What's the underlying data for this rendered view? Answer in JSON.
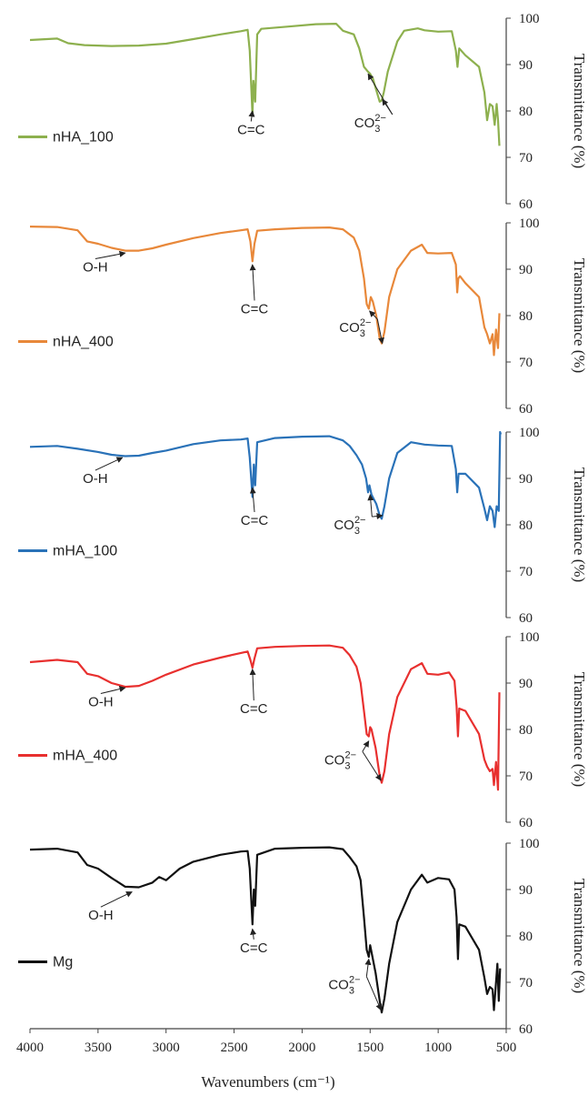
{
  "chart_data": [
    {
      "type": "line",
      "name": "nHA_100",
      "color": "#8db04e",
      "ylabel": "Transmittance (%)",
      "ylim": [
        60,
        100
      ],
      "yticks": [
        "100",
        "90",
        "80",
        "70",
        "60"
      ],
      "legend": "nHA_100",
      "points": [
        [
          4000,
          95.3
        ],
        [
          3800,
          95.6
        ],
        [
          3720,
          94.6
        ],
        [
          3600,
          94.2
        ],
        [
          3400,
          94.0
        ],
        [
          3200,
          94.1
        ],
        [
          3000,
          94.5
        ],
        [
          2800,
          95.5
        ],
        [
          2600,
          96.5
        ],
        [
          2450,
          97.2
        ],
        [
          2400,
          97.5
        ],
        [
          2385,
          93.0
        ],
        [
          2365,
          79.0
        ],
        [
          2358,
          86.5
        ],
        [
          2345,
          82.0
        ],
        [
          2330,
          96.5
        ],
        [
          2300,
          97.7
        ],
        [
          2100,
          98.2
        ],
        [
          1900,
          98.7
        ],
        [
          1750,
          98.8
        ],
        [
          1700,
          97.3
        ],
        [
          1620,
          96.5
        ],
        [
          1580,
          93.5
        ],
        [
          1545,
          89.5
        ],
        [
          1520,
          88.6
        ],
        [
          1500,
          88.0
        ],
        [
          1480,
          87.0
        ],
        [
          1455,
          84.5
        ],
        [
          1430,
          82.0
        ],
        [
          1415,
          82.3
        ],
        [
          1400,
          84.0
        ],
        [
          1370,
          88.5
        ],
        [
          1300,
          95.0
        ],
        [
          1250,
          97.3
        ],
        [
          1150,
          97.8
        ],
        [
          1100,
          97.4
        ],
        [
          1000,
          97.1
        ],
        [
          900,
          97.2
        ],
        [
          870,
          93.0
        ],
        [
          858,
          89.5
        ],
        [
          845,
          93.5
        ],
        [
          800,
          92.0
        ],
        [
          700,
          89.5
        ],
        [
          660,
          84.0
        ],
        [
          640,
          78.0
        ],
        [
          620,
          81.5
        ],
        [
          600,
          81.0
        ],
        [
          585,
          77.0
        ],
        [
          570,
          81.5
        ],
        [
          560,
          78.0
        ],
        [
          550,
          72.5
        ]
      ],
      "annotations": [
        {
          "label": "C=C",
          "text_x": 2375,
          "text_y": 75.0,
          "tip_x": 2365,
          "tip_y": 80.0
        },
        {
          "label": "CO₃²⁻",
          "text_x": 1470,
          "text_y": 76.5,
          "tip_x": 1515,
          "tip_y": 88.0
        },
        {
          "label": "",
          "text_x": 1470,
          "text_y": 76.5,
          "tip_x": 1410,
          "tip_y": 82.5
        }
      ]
    },
    {
      "type": "line",
      "name": "nHA_400",
      "color": "#e8883a",
      "ylabel": "Transmittance (%)",
      "ylim": [
        60,
        100
      ],
      "yticks": [
        "100",
        "90",
        "80",
        "70",
        "60"
      ],
      "legend": "nHA_400",
      "points": [
        [
          4000,
          99.2
        ],
        [
          3800,
          99.1
        ],
        [
          3650,
          98.4
        ],
        [
          3580,
          96.0
        ],
        [
          3500,
          95.5
        ],
        [
          3400,
          94.6
        ],
        [
          3300,
          94.0
        ],
        [
          3200,
          94.0
        ],
        [
          3100,
          94.5
        ],
        [
          3000,
          95.3
        ],
        [
          2800,
          96.7
        ],
        [
          2600,
          97.8
        ],
        [
          2450,
          98.4
        ],
        [
          2400,
          98.6
        ],
        [
          2380,
          96.0
        ],
        [
          2365,
          91.7
        ],
        [
          2350,
          95.5
        ],
        [
          2330,
          98.3
        ],
        [
          2200,
          98.6
        ],
        [
          2000,
          98.9
        ],
        [
          1800,
          99.0
        ],
        [
          1700,
          98.6
        ],
        [
          1620,
          96.8
        ],
        [
          1580,
          94.0
        ],
        [
          1545,
          88.0
        ],
        [
          1525,
          82.5
        ],
        [
          1510,
          81.5
        ],
        [
          1495,
          84.0
        ],
        [
          1480,
          83.0
        ],
        [
          1455,
          80.0
        ],
        [
          1430,
          75.0
        ],
        [
          1415,
          74.0
        ],
        [
          1395,
          76.5
        ],
        [
          1360,
          84.0
        ],
        [
          1300,
          90.0
        ],
        [
          1200,
          94.0
        ],
        [
          1120,
          95.3
        ],
        [
          1080,
          93.5
        ],
        [
          1000,
          93.4
        ],
        [
          900,
          93.5
        ],
        [
          870,
          91.0
        ],
        [
          860,
          85.0
        ],
        [
          852,
          88.0
        ],
        [
          840,
          88.5
        ],
        [
          800,
          87.0
        ],
        [
          700,
          84.0
        ],
        [
          660,
          77.5
        ],
        [
          640,
          76.0
        ],
        [
          620,
          74.0
        ],
        [
          600,
          76.0
        ],
        [
          590,
          71.5
        ],
        [
          575,
          77.0
        ],
        [
          560,
          73.0
        ],
        [
          550,
          80.5
        ]
      ],
      "annotations": [
        {
          "label": "O-H",
          "text_x": 3520,
          "text_y": 89.5,
          "tip_x": 3300,
          "tip_y": 93.5
        },
        {
          "label": "C=C",
          "text_x": 2350,
          "text_y": 80.5,
          "tip_x": 2365,
          "tip_y": 91.0
        },
        {
          "label": "CO₃²⁻",
          "text_x": 1580,
          "text_y": 76.5,
          "tip_x": 1505,
          "tip_y": 81.0
        },
        {
          "label": "",
          "text_x": 1580,
          "text_y": 76.5,
          "tip_x": 1410,
          "tip_y": 74.0
        }
      ]
    },
    {
      "type": "line",
      "name": "mHA_100",
      "color": "#2a72b8",
      "ylabel": "Transmittance (%)",
      "ylim": [
        60,
        100
      ],
      "yticks": [
        "100",
        "90",
        "80",
        "70",
        "60"
      ],
      "legend": "mHA_100",
      "points": [
        [
          4000,
          96.8
        ],
        [
          3800,
          97.0
        ],
        [
          3650,
          96.4
        ],
        [
          3500,
          95.7
        ],
        [
          3400,
          95.1
        ],
        [
          3300,
          94.8
        ],
        [
          3200,
          94.9
        ],
        [
          3100,
          95.5
        ],
        [
          3000,
          96.0
        ],
        [
          2800,
          97.4
        ],
        [
          2600,
          98.2
        ],
        [
          2450,
          98.4
        ],
        [
          2400,
          98.6
        ],
        [
          2385,
          94.5
        ],
        [
          2365,
          86.0
        ],
        [
          2355,
          93.0
        ],
        [
          2345,
          88.5
        ],
        [
          2330,
          97.8
        ],
        [
          2200,
          98.7
        ],
        [
          2000,
          99.0
        ],
        [
          1800,
          99.1
        ],
        [
          1700,
          98.2
        ],
        [
          1650,
          97.0
        ],
        [
          1600,
          95.0
        ],
        [
          1560,
          93.0
        ],
        [
          1530,
          90.0
        ],
        [
          1515,
          87.0
        ],
        [
          1505,
          88.5
        ],
        [
          1490,
          86.5
        ],
        [
          1455,
          84.5
        ],
        [
          1430,
          82.0
        ],
        [
          1415,
          81.3
        ],
        [
          1395,
          84.0
        ],
        [
          1360,
          90.0
        ],
        [
          1300,
          95.5
        ],
        [
          1200,
          97.8
        ],
        [
          1100,
          97.3
        ],
        [
          1000,
          97.1
        ],
        [
          900,
          97.0
        ],
        [
          870,
          92.0
        ],
        [
          860,
          87.0
        ],
        [
          850,
          91.0
        ],
        [
          800,
          91.0
        ],
        [
          700,
          88.0
        ],
        [
          660,
          83.5
        ],
        [
          640,
          81.0
        ],
        [
          620,
          84.0
        ],
        [
          600,
          83.0
        ],
        [
          585,
          79.5
        ],
        [
          570,
          84.0
        ],
        [
          555,
          83.0
        ],
        [
          545,
          100.0
        ],
        [
          540,
          99.5
        ]
      ],
      "annotations": [
        {
          "label": "O-H",
          "text_x": 3520,
          "text_y": 89.0,
          "tip_x": 3320,
          "tip_y": 94.5
        },
        {
          "label": "C=C",
          "text_x": 2350,
          "text_y": 80.0,
          "tip_x": 2365,
          "tip_y": 88.0
        },
        {
          "label": "CO₃²⁻",
          "text_x": 1620,
          "text_y": 79.0,
          "tip_x": 1500,
          "tip_y": 86.5
        },
        {
          "label": "",
          "text_x": 1620,
          "text_y": 79.0,
          "tip_x": 1410,
          "tip_y": 82.0
        }
      ]
    },
    {
      "type": "line",
      "name": "mHA_400",
      "color": "#e8302f",
      "ylabel": "Transmittance (%)",
      "ylim": [
        60,
        100
      ],
      "yticks": [
        "100",
        "90",
        "80",
        "70",
        "60"
      ],
      "legend": "mHA_400",
      "points": [
        [
          4000,
          94.5
        ],
        [
          3800,
          95.0
        ],
        [
          3650,
          94.5
        ],
        [
          3580,
          92.0
        ],
        [
          3500,
          91.5
        ],
        [
          3400,
          90.0
        ],
        [
          3300,
          89.2
        ],
        [
          3200,
          89.4
        ],
        [
          3100,
          90.5
        ],
        [
          3000,
          91.8
        ],
        [
          2800,
          94.0
        ],
        [
          2600,
          95.5
        ],
        [
          2450,
          96.5
        ],
        [
          2400,
          96.8
        ],
        [
          2380,
          95.0
        ],
        [
          2365,
          93.3
        ],
        [
          2350,
          95.3
        ],
        [
          2330,
          97.5
        ],
        [
          2200,
          97.8
        ],
        [
          2000,
          98.0
        ],
        [
          1800,
          98.1
        ],
        [
          1700,
          97.6
        ],
        [
          1650,
          96.0
        ],
        [
          1600,
          93.5
        ],
        [
          1570,
          90.0
        ],
        [
          1545,
          84.0
        ],
        [
          1525,
          79.0
        ],
        [
          1510,
          78.5
        ],
        [
          1500,
          80.5
        ],
        [
          1490,
          80.0
        ],
        [
          1460,
          76.0
        ],
        [
          1430,
          70.0
        ],
        [
          1415,
          68.5
        ],
        [
          1395,
          71.0
        ],
        [
          1360,
          79.0
        ],
        [
          1300,
          87.0
        ],
        [
          1200,
          93.0
        ],
        [
          1120,
          94.3
        ],
        [
          1080,
          92.0
        ],
        [
          1000,
          91.8
        ],
        [
          920,
          92.3
        ],
        [
          880,
          90.5
        ],
        [
          865,
          85.0
        ],
        [
          855,
          78.5
        ],
        [
          845,
          84.5
        ],
        [
          800,
          84.0
        ],
        [
          700,
          79.0
        ],
        [
          660,
          73.5
        ],
        [
          640,
          72.0
        ],
        [
          620,
          71.0
        ],
        [
          600,
          71.5
        ],
        [
          590,
          68.0
        ],
        [
          575,
          73.0
        ],
        [
          560,
          67.0
        ],
        [
          550,
          88.0
        ]
      ],
      "annotations": [
        {
          "label": "O-H",
          "text_x": 3480,
          "text_y": 85.0,
          "tip_x": 3300,
          "tip_y": 89.0
        },
        {
          "label": "C=C",
          "text_x": 2355,
          "text_y": 83.5,
          "tip_x": 2365,
          "tip_y": 93.0
        },
        {
          "label": "CO₃²⁻",
          "text_x": 1690,
          "text_y": 72.5,
          "tip_x": 1510,
          "tip_y": 77.5
        },
        {
          "label": "",
          "text_x": 1690,
          "text_y": 72.5,
          "tip_x": 1420,
          "tip_y": 69.0
        }
      ]
    },
    {
      "type": "line",
      "name": "Mg",
      "color": "#111111",
      "ylabel": "Transmittance (%)",
      "ylim": [
        60,
        100
      ],
      "yticks": [
        "100",
        "90",
        "80",
        "70",
        "60"
      ],
      "legend": "Mg",
      "points": [
        [
          4000,
          98.6
        ],
        [
          3800,
          98.8
        ],
        [
          3650,
          98.0
        ],
        [
          3580,
          95.3
        ],
        [
          3500,
          94.5
        ],
        [
          3400,
          92.5
        ],
        [
          3300,
          90.6
        ],
        [
          3200,
          90.5
        ],
        [
          3100,
          91.5
        ],
        [
          3050,
          92.7
        ],
        [
          3000,
          92.0
        ],
        [
          2900,
          94.5
        ],
        [
          2800,
          96.0
        ],
        [
          2600,
          97.5
        ],
        [
          2450,
          98.2
        ],
        [
          2400,
          98.3
        ],
        [
          2385,
          94.5
        ],
        [
          2365,
          82.5
        ],
        [
          2355,
          90.0
        ],
        [
          2345,
          86.5
        ],
        [
          2330,
          97.5
        ],
        [
          2200,
          98.8
        ],
        [
          2000,
          99.0
        ],
        [
          1800,
          99.1
        ],
        [
          1700,
          98.7
        ],
        [
          1650,
          97.0
        ],
        [
          1600,
          95.0
        ],
        [
          1570,
          92.0
        ],
        [
          1545,
          84.0
        ],
        [
          1525,
          77.0
        ],
        [
          1510,
          75.5
        ],
        [
          1500,
          78.0
        ],
        [
          1490,
          76.5
        ],
        [
          1460,
          72.0
        ],
        [
          1430,
          66.0
        ],
        [
          1415,
          63.5
        ],
        [
          1395,
          66.5
        ],
        [
          1360,
          74.0
        ],
        [
          1300,
          83.0
        ],
        [
          1200,
          90.0
        ],
        [
          1120,
          93.2
        ],
        [
          1080,
          91.5
        ],
        [
          1000,
          92.5
        ],
        [
          920,
          92.2
        ],
        [
          880,
          90.0
        ],
        [
          865,
          84.0
        ],
        [
          855,
          75.0
        ],
        [
          845,
          82.5
        ],
        [
          800,
          82.0
        ],
        [
          700,
          77.0
        ],
        [
          660,
          71.0
        ],
        [
          640,
          67.5
        ],
        [
          620,
          69.0
        ],
        [
          600,
          68.5
        ],
        [
          590,
          64.0
        ],
        [
          575,
          70.0
        ],
        [
          565,
          74.0
        ],
        [
          555,
          66.0
        ],
        [
          545,
          73.0
        ]
      ],
      "annotations": [
        {
          "label": "O-H",
          "text_x": 3480,
          "text_y": 83.5,
          "tip_x": 3250,
          "tip_y": 89.5
        },
        {
          "label": "C=C",
          "text_x": 2355,
          "text_y": 76.5,
          "tip_x": 2365,
          "tip_y": 81.5
        },
        {
          "label": "CO₃²⁻",
          "text_x": 1660,
          "text_y": 68.5,
          "tip_x": 1510,
          "tip_y": 75.0
        },
        {
          "label": "",
          "text_x": 1660,
          "text_y": 68.5,
          "tip_x": 1420,
          "tip_y": 64.0
        }
      ]
    }
  ],
  "x_axis": {
    "xlabel": "Wavenumbers (cm⁻¹)",
    "xlim": [
      4000,
      500
    ],
    "ticks": [
      "4000",
      "3500",
      "3000",
      "2500",
      "2000",
      "1500",
      "1000",
      "500"
    ]
  }
}
